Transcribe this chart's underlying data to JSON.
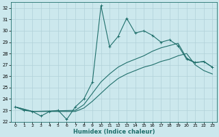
{
  "xlabel": "Humidex (Indice chaleur)",
  "background_color": "#cce8ed",
  "grid_color": "#b0d0d8",
  "line_color": "#1e6e6a",
  "xlim": [
    -0.5,
    23.5
  ],
  "ylim": [
    22,
    32.5
  ],
  "yticks": [
    22,
    23,
    24,
    25,
    26,
    27,
    28,
    29,
    30,
    31,
    32
  ],
  "xticks": [
    0,
    1,
    2,
    3,
    4,
    5,
    6,
    7,
    8,
    9,
    10,
    11,
    12,
    13,
    14,
    15,
    16,
    17,
    18,
    19,
    20,
    21,
    22,
    23
  ],
  "series1_x": [
    0,
    1,
    2,
    3,
    4,
    5,
    6,
    7,
    8,
    9,
    10,
    11,
    12,
    13,
    14,
    15,
    16,
    17,
    18,
    19,
    20,
    21,
    22,
    23
  ],
  "series1_y": [
    23.3,
    23.0,
    22.9,
    22.5,
    22.9,
    23.0,
    22.2,
    23.3,
    24.0,
    25.5,
    32.2,
    28.6,
    29.5,
    31.1,
    29.8,
    30.0,
    29.6,
    29.0,
    29.2,
    28.7,
    27.5,
    27.2,
    27.3,
    26.8
  ],
  "series2_x": [
    0,
    2,
    7,
    8,
    9,
    10,
    11,
    12,
    13,
    14,
    15,
    16,
    17,
    18,
    19,
    20,
    21,
    22,
    23
  ],
  "series2_y": [
    23.3,
    22.9,
    23.0,
    23.5,
    24.5,
    25.5,
    26.2,
    26.8,
    27.2,
    27.5,
    27.8,
    28.2,
    28.5,
    28.7,
    28.9,
    27.6,
    27.2,
    27.3,
    26.8
  ],
  "series3_x": [
    0,
    2,
    7,
    8,
    9,
    10,
    11,
    12,
    13,
    14,
    15,
    16,
    17,
    18,
    19,
    20,
    21,
    22,
    23
  ],
  "series3_y": [
    23.3,
    22.9,
    22.9,
    23.2,
    23.8,
    24.5,
    25.2,
    25.8,
    26.2,
    26.5,
    26.8,
    27.0,
    27.3,
    27.5,
    27.8,
    28.0,
    27.0,
    26.5,
    26.2
  ]
}
